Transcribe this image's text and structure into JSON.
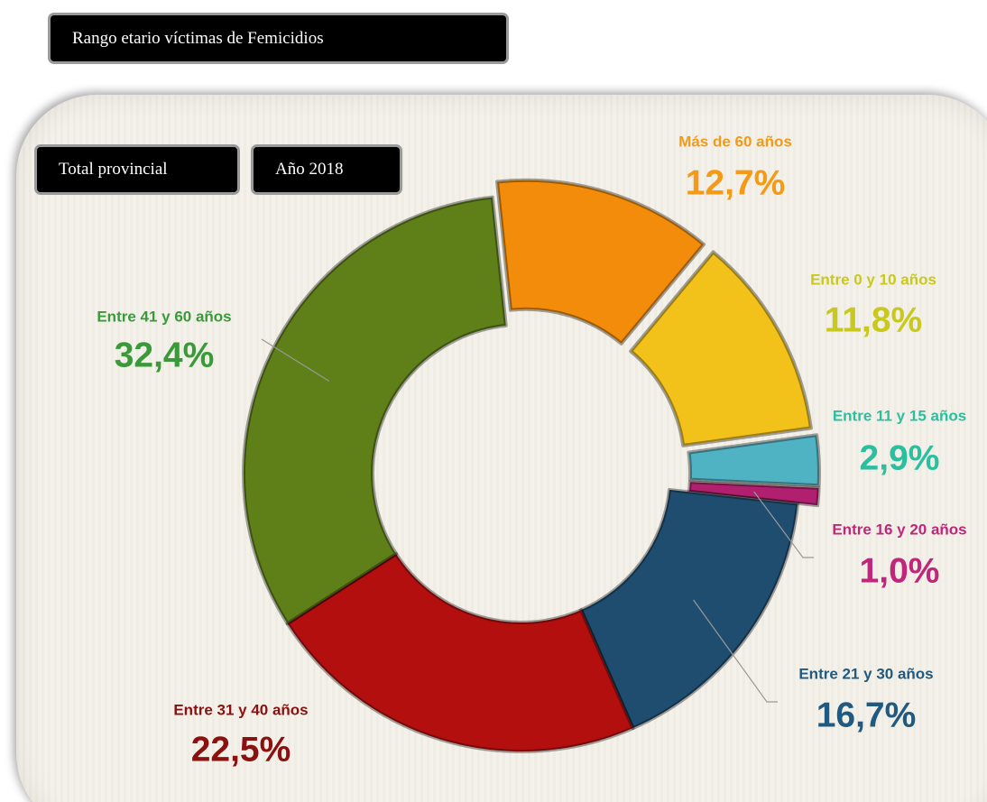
{
  "chart_data": {
    "type": "donut",
    "title": "Rango etario víctimas de Femicidios",
    "annotations": [
      "Total provincial",
      "Año 2018"
    ],
    "categories": [
      "Más de 60 años",
      "Entre 0 y 10 años",
      "Entre 11 y 15 años",
      "Entre 16 y 20 años",
      "Entre 21 y 30 años",
      "Entre 31 y 40 años",
      "Entre 41 y 60 años"
    ],
    "values": [
      12.7,
      11.8,
      2.9,
      1.0,
      16.7,
      22.5,
      32.4
    ],
    "value_labels": [
      "12,7%",
      "11,8%",
      "2,9%",
      "1,0%",
      "16,7%",
      "22,5%",
      "32,4%"
    ],
    "colors": [
      "#f28c0a",
      "#f2c21a",
      "#4fb3c4",
      "#b0206e",
      "#1e4d70",
      "#b30f0f",
      "#5f8019"
    ],
    "label_colors": [
      "#f59a16",
      "#c8c81e",
      "#2bbf9f",
      "#c0267a",
      "#215a80",
      "#8b1010",
      "#3a9a3a"
    ]
  }
}
